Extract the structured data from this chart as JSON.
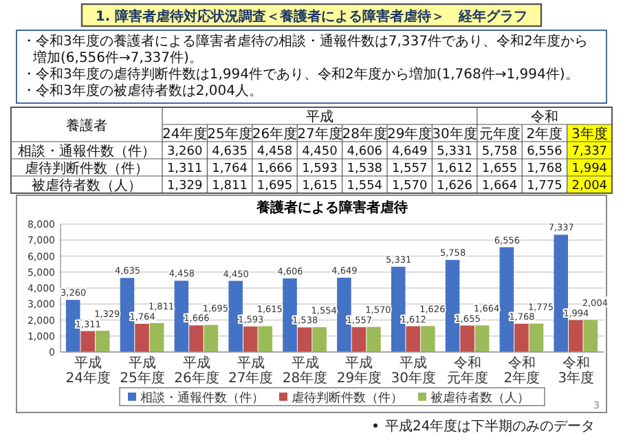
{
  "chart_data": {
    "type": "bar",
    "title": "養護者による障害者虐待",
    "categories": [
      "平成24年度",
      "平成25年度",
      "平成26年度",
      "平成27年度",
      "平成28年度",
      "平成29年度",
      "平成30年度",
      "令和元年度",
      "令和2年度",
      "令和3年度"
    ],
    "series": [
      {
        "name": "相談・通報件数（件）",
        "color": "#4472c4",
        "values": [
          3260,
          4635,
          4458,
          4450,
          4606,
          4649,
          5331,
          5758,
          6556,
          7337
        ],
        "value_labels": [
          "3,260",
          "4,635",
          "4,458",
          "4,450",
          "4,606",
          "4,649",
          "5,331",
          "5,758",
          "6,556",
          "7,337"
        ]
      },
      {
        "name": "虐待判断件数（件）",
        "color": "#c0504d",
        "values": [
          1311,
          1764,
          1666,
          1593,
          1538,
          1557,
          1612,
          1655,
          1768,
          1994
        ],
        "value_labels": [
          "1,311",
          "1,764",
          "1,666",
          "1,593",
          "1,538",
          "1,557",
          "1,612",
          "1,655",
          "1,768",
          "1,994"
        ]
      },
      {
        "name": "被虐待者数（人）",
        "color": "#9bbb59",
        "values": [
          1329,
          1811,
          1695,
          1615,
          1554,
          1570,
          1626,
          1664,
          1775,
          2004
        ],
        "value_labels": [
          "1,329",
          "1,811",
          "1,695",
          "1,615",
          "1,554",
          "1,570",
          "1,626",
          "1,664",
          "1,775",
          "2,004"
        ]
      }
    ],
    "ylim": [
      0,
      8000
    ],
    "yticks": [
      {
        "value": 0,
        "label": "0"
      },
      {
        "value": 1000,
        "label": "1,000"
      },
      {
        "value": 2000,
        "label": "2,000"
      },
      {
        "value": 3000,
        "label": "3,000"
      },
      {
        "value": 4000,
        "label": "4,000"
      },
      {
        "value": 5000,
        "label": "5,000"
      },
      {
        "value": 6000,
        "label": "6,000"
      },
      {
        "value": 7000,
        "label": "7,000"
      },
      {
        "value": 8000,
        "label": "8,000"
      }
    ],
    "grid": "y",
    "legend": "bottom",
    "annotations": [
      "1. 障害者虐待対応状況調査＜養護者による障害者虐待＞　経年グラフ",
      "・令和3年度の養護者による障害者虐待の相談・通報件数は7,337件であり、令和2年度から増加(6,556件→7,337件)。",
      "・令和3年度の虐待判断件数は1,994件であり、令和2年度から増加(1,768件→1,994件)。",
      "・令和3年度の被虐待者数は2,004人。",
      "養護者",
      "平成",
      "令和",
      "24年度",
      "25年度",
      "26年度",
      "27年度",
      "28年度",
      "29年度",
      "30年度",
      "元年度",
      "2年度",
      "3年度",
      "平成24年度は下半期のみのデータ",
      "3"
    ]
  }
}
